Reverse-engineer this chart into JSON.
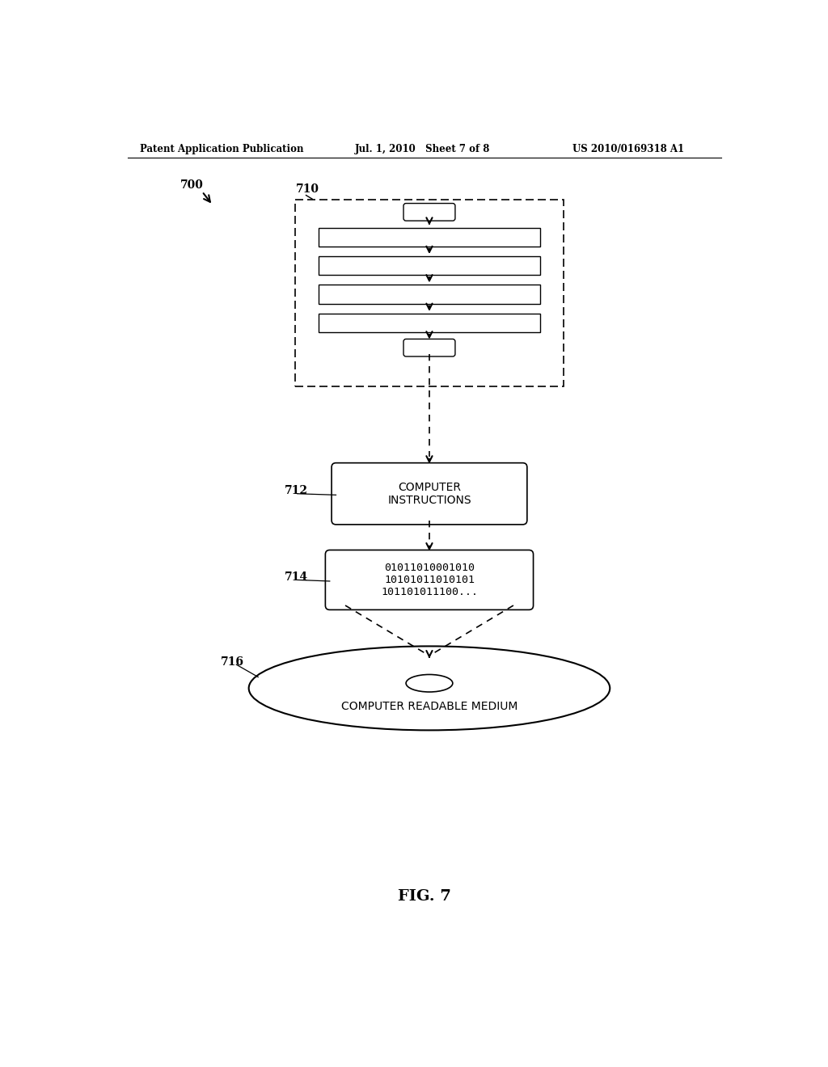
{
  "bg_color": "#ffffff",
  "header_left": "Patent Application Publication",
  "header_mid": "Jul. 1, 2010   Sheet 7 of 8",
  "header_right": "US 2010/0169318 A1",
  "fig_label": "FIG. 7",
  "label_700": "700",
  "label_710": "710",
  "label_712": "712",
  "label_714": "714",
  "label_716": "716",
  "box_712_text": "COMPUTER\nINSTRUCTIONS",
  "box_714_text": "01011010001010\n10101011010101\n101101011100...",
  "disk_label": "COMPUTER READABLE MEDIUM",
  "page_width": 10.24,
  "page_height": 13.2
}
